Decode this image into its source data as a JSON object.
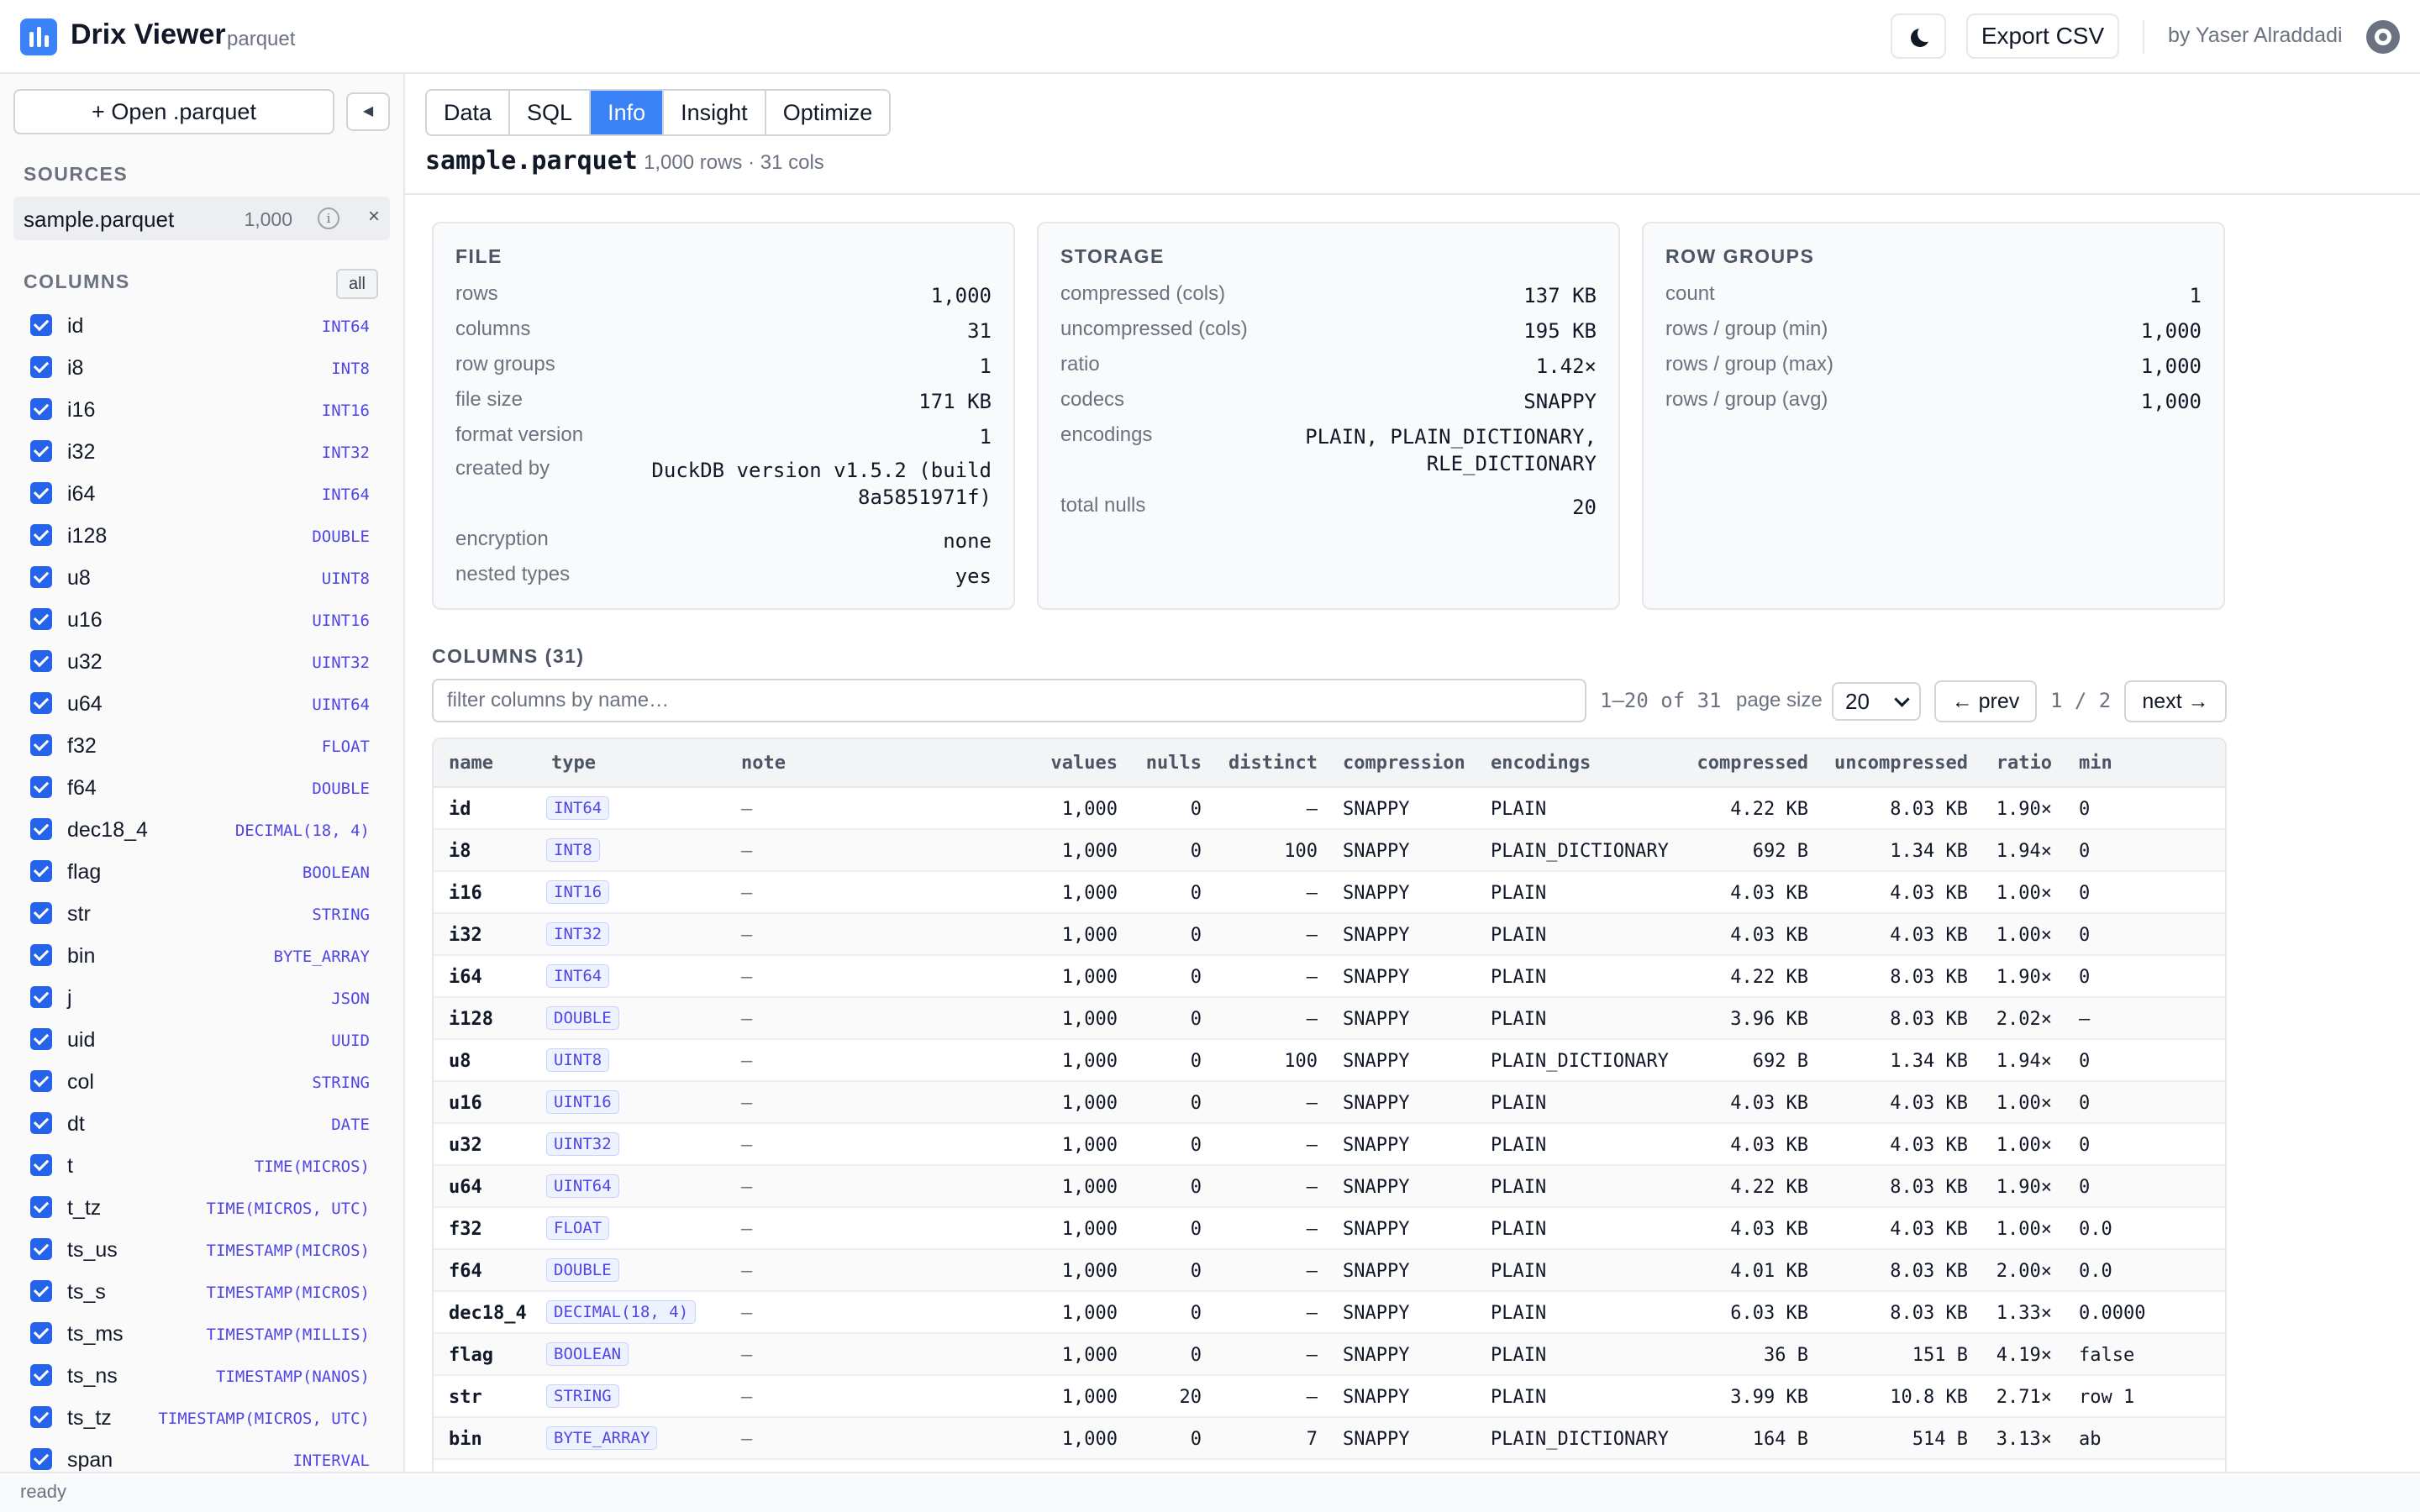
{
  "header": {
    "app_title": "Drix Viewer",
    "app_sub": "parquet",
    "export_label": "Export CSV",
    "byline": "by Yaser Alraddadi"
  },
  "sidebar": {
    "open_label": "+ Open .parquet",
    "collapse_glyph": "◀",
    "sources_label": "SOURCES",
    "source": {
      "name": "sample.parquet",
      "count": "1,000",
      "info_glyph": "i",
      "remove_glyph": "×"
    },
    "columns_label": "COLUMNS",
    "all_label": "all",
    "columns": [
      {
        "name": "id",
        "type": "INT64"
      },
      {
        "name": "i8",
        "type": "INT8"
      },
      {
        "name": "i16",
        "type": "INT16"
      },
      {
        "name": "i32",
        "type": "INT32"
      },
      {
        "name": "i64",
        "type": "INT64"
      },
      {
        "name": "i128",
        "type": "DOUBLE"
      },
      {
        "name": "u8",
        "type": "UINT8"
      },
      {
        "name": "u16",
        "type": "UINT16"
      },
      {
        "name": "u32",
        "type": "UINT32"
      },
      {
        "name": "u64",
        "type": "UINT64"
      },
      {
        "name": "f32",
        "type": "FLOAT"
      },
      {
        "name": "f64",
        "type": "DOUBLE"
      },
      {
        "name": "dec18_4",
        "type": "DECIMAL(18, 4)"
      },
      {
        "name": "flag",
        "type": "BOOLEAN"
      },
      {
        "name": "str",
        "type": "STRING"
      },
      {
        "name": "bin",
        "type": "BYTE_ARRAY"
      },
      {
        "name": "j",
        "type": "JSON"
      },
      {
        "name": "uid",
        "type": "UUID"
      },
      {
        "name": "col",
        "type": "STRING"
      },
      {
        "name": "dt",
        "type": "DATE"
      },
      {
        "name": "t",
        "type": "TIME(MICROS)"
      },
      {
        "name": "t_tz",
        "type": "TIME(MICROS, UTC)"
      },
      {
        "name": "ts_us",
        "type": "TIMESTAMP(MICROS)"
      },
      {
        "name": "ts_s",
        "type": "TIMESTAMP(MICROS)"
      },
      {
        "name": "ts_ms",
        "type": "TIMESTAMP(MILLIS)"
      },
      {
        "name": "ts_ns",
        "type": "TIMESTAMP(NANOS)"
      },
      {
        "name": "ts_tz",
        "type": "TIMESTAMP(MICROS, UTC)"
      },
      {
        "name": "span",
        "type": "INTERVAL"
      }
    ]
  },
  "tabs": [
    "Data",
    "SQL",
    "Info",
    "Insight",
    "Optimize"
  ],
  "active_tab": "Info",
  "file": {
    "title": "sample.parquet",
    "meta": "1,000 rows · 31 cols"
  },
  "cards": {
    "file": {
      "title": "FILE",
      "rows": [
        {
          "k": "rows",
          "v": "1,000"
        },
        {
          "k": "columns",
          "v": "31"
        },
        {
          "k": "row groups",
          "v": "1"
        },
        {
          "k": "file size",
          "v": "171 KB"
        },
        {
          "k": "format version",
          "v": "1"
        },
        {
          "k": "created by",
          "v": "DuckDB version v1.5.2 (build 8a5851971f)"
        },
        {
          "k": "encryption",
          "v": "none"
        },
        {
          "k": "nested types",
          "v": "yes"
        }
      ]
    },
    "storage": {
      "title": "STORAGE",
      "rows": [
        {
          "k": "compressed (cols)",
          "v": "137 KB"
        },
        {
          "k": "uncompressed (cols)",
          "v": "195 KB"
        },
        {
          "k": "ratio",
          "v": "1.42×"
        },
        {
          "k": "codecs",
          "v": "SNAPPY"
        },
        {
          "k": "encodings",
          "v": "PLAIN, PLAIN_DICTIONARY, RLE_DICTIONARY"
        },
        {
          "k": "total nulls",
          "v": "20"
        }
      ]
    },
    "row_groups": {
      "title": "ROW GROUPS",
      "rows": [
        {
          "k": "count",
          "v": "1"
        },
        {
          "k": "rows / group (min)",
          "v": "1,000"
        },
        {
          "k": "rows / group (max)",
          "v": "1,000"
        },
        {
          "k": "rows / group (avg)",
          "v": "1,000"
        }
      ]
    }
  },
  "columns_section": {
    "label": "COLUMNS (31)",
    "filter_placeholder": "filter columns by name…",
    "range": "1–20 of 31",
    "page_size_label": "page size",
    "page_size": "20",
    "prev_label": "← prev",
    "next_label": "next →",
    "page_indicator": "1 / 2",
    "headers": [
      "name",
      "type",
      "note",
      "values",
      "nulls",
      "distinct",
      "compression",
      "encodings",
      "compressed",
      "uncompressed",
      "ratio",
      "min"
    ],
    "rows": [
      [
        "id",
        "INT64",
        "—",
        "1,000",
        "0",
        "—",
        "SNAPPY",
        "PLAIN",
        "4.22 KB",
        "8.03 KB",
        "1.90×",
        "0"
      ],
      [
        "i8",
        "INT8",
        "—",
        "1,000",
        "0",
        "100",
        "SNAPPY",
        "PLAIN_DICTIONARY",
        "692 B",
        "1.34 KB",
        "1.94×",
        "0"
      ],
      [
        "i16",
        "INT16",
        "—",
        "1,000",
        "0",
        "—",
        "SNAPPY",
        "PLAIN",
        "4.03 KB",
        "4.03 KB",
        "1.00×",
        "0"
      ],
      [
        "i32",
        "INT32",
        "—",
        "1,000",
        "0",
        "—",
        "SNAPPY",
        "PLAIN",
        "4.03 KB",
        "4.03 KB",
        "1.00×",
        "0"
      ],
      [
        "i64",
        "INT64",
        "—",
        "1,000",
        "0",
        "—",
        "SNAPPY",
        "PLAIN",
        "4.22 KB",
        "8.03 KB",
        "1.90×",
        "0"
      ],
      [
        "i128",
        "DOUBLE",
        "—",
        "1,000",
        "0",
        "—",
        "SNAPPY",
        "PLAIN",
        "3.96 KB",
        "8.03 KB",
        "2.02×",
        "—"
      ],
      [
        "u8",
        "UINT8",
        "—",
        "1,000",
        "0",
        "100",
        "SNAPPY",
        "PLAIN_DICTIONARY",
        "692 B",
        "1.34 KB",
        "1.94×",
        "0"
      ],
      [
        "u16",
        "UINT16",
        "—",
        "1,000",
        "0",
        "—",
        "SNAPPY",
        "PLAIN",
        "4.03 KB",
        "4.03 KB",
        "1.00×",
        "0"
      ],
      [
        "u32",
        "UINT32",
        "—",
        "1,000",
        "0",
        "—",
        "SNAPPY",
        "PLAIN",
        "4.03 KB",
        "4.03 KB",
        "1.00×",
        "0"
      ],
      [
        "u64",
        "UINT64",
        "—",
        "1,000",
        "0",
        "—",
        "SNAPPY",
        "PLAIN",
        "4.22 KB",
        "8.03 KB",
        "1.90×",
        "0"
      ],
      [
        "f32",
        "FLOAT",
        "—",
        "1,000",
        "0",
        "—",
        "SNAPPY",
        "PLAIN",
        "4.03 KB",
        "4.03 KB",
        "1.00×",
        "0.0"
      ],
      [
        "f64",
        "DOUBLE",
        "—",
        "1,000",
        "0",
        "—",
        "SNAPPY",
        "PLAIN",
        "4.01 KB",
        "8.03 KB",
        "2.00×",
        "0.0"
      ],
      [
        "dec18_4",
        "DECIMAL(18, 4)",
        "—",
        "1,000",
        "0",
        "—",
        "SNAPPY",
        "PLAIN",
        "6.03 KB",
        "8.03 KB",
        "1.33×",
        "0.0000"
      ],
      [
        "flag",
        "BOOLEAN",
        "—",
        "1,000",
        "0",
        "—",
        "SNAPPY",
        "PLAIN",
        "36 B",
        "151 B",
        "4.19×",
        "false"
      ],
      [
        "str",
        "STRING",
        "—",
        "1,000",
        "20",
        "—",
        "SNAPPY",
        "PLAIN",
        "3.99 KB",
        "10.8 KB",
        "2.71×",
        "row 1"
      ],
      [
        "bin",
        "BYTE_ARRAY",
        "—",
        "1,000",
        "0",
        "7",
        "SNAPPY",
        "PLAIN_DICTIONARY",
        "164 B",
        "514 B",
        "3.13×",
        "ab"
      ]
    ]
  },
  "status": "ready",
  "colors": {
    "accent": "#3b82f6",
    "type_text": "#4f46e5",
    "checkbox": "#2563eb"
  },
  "icons": {
    "logo": "bar-chart-icon",
    "theme": "moon-icon",
    "github": "github-icon"
  }
}
